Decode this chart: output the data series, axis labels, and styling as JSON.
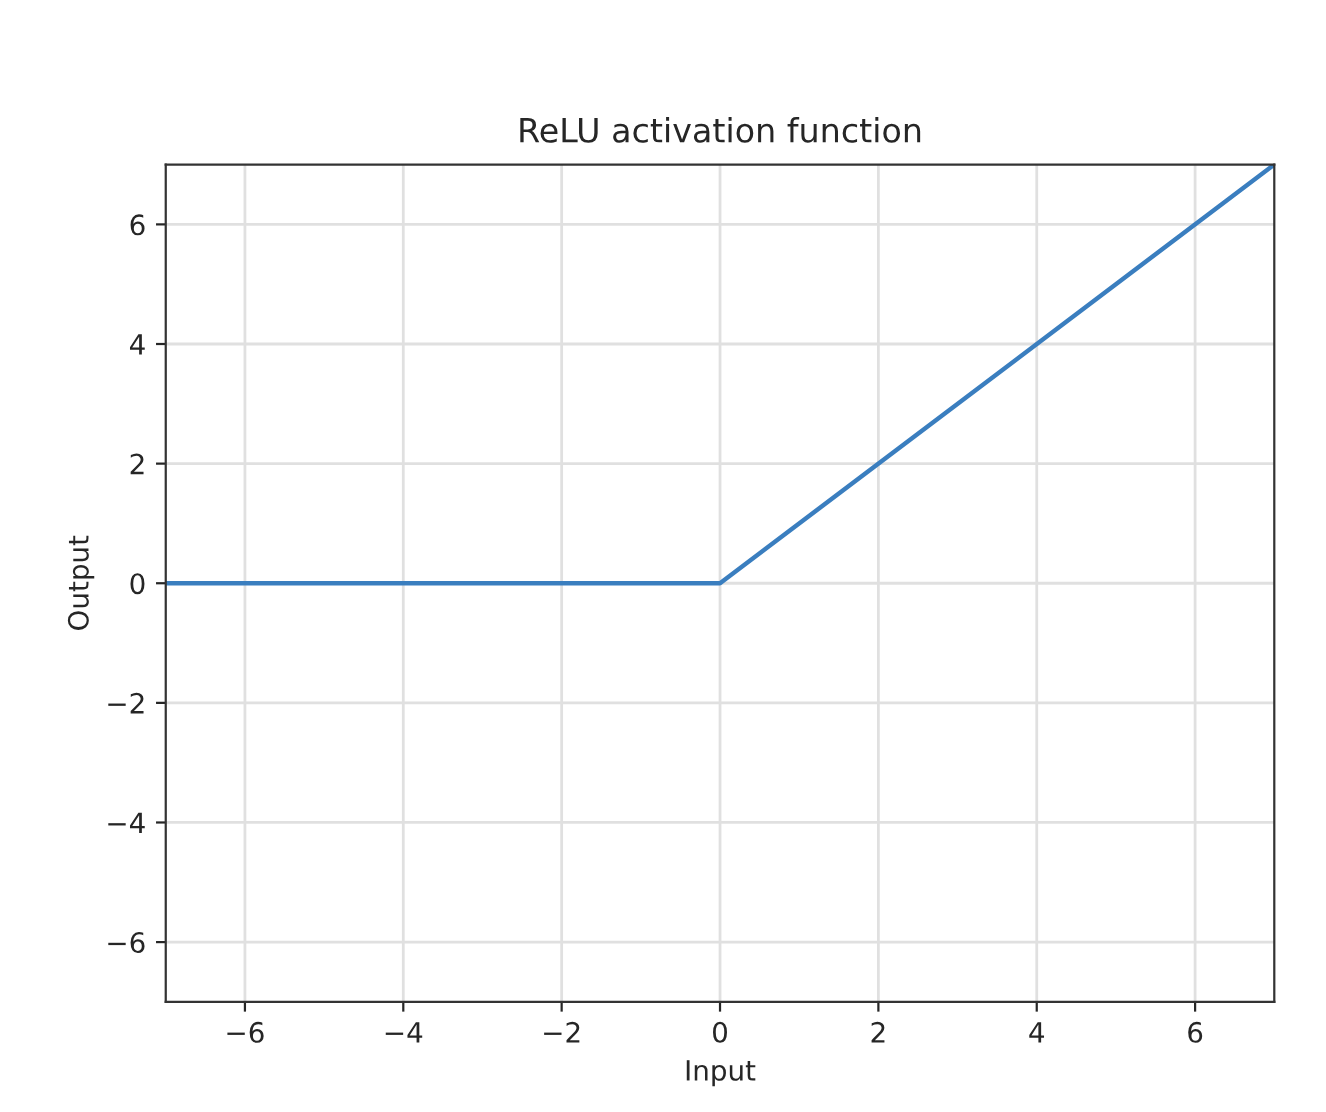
{
  "chart_data": {
    "type": "line",
    "title": "ReLU activation function",
    "xlabel": "Input",
    "ylabel": "Output",
    "series": [
      {
        "color": "#3a7ebf",
        "x": [
          -7,
          0,
          7
        ],
        "values": [
          0,
          0,
          7
        ]
      }
    ],
    "xlim": [
      -7,
      7
    ],
    "xticks": [
      -6,
      -4,
      -2,
      0,
      2,
      4,
      6
    ],
    "ylim": [
      -7,
      7
    ],
    "yticks": [
      -6,
      -4,
      -2,
      0,
      2,
      4,
      6
    ],
    "grid": true,
    "marker": "none",
    "line_style": "solid"
  }
}
